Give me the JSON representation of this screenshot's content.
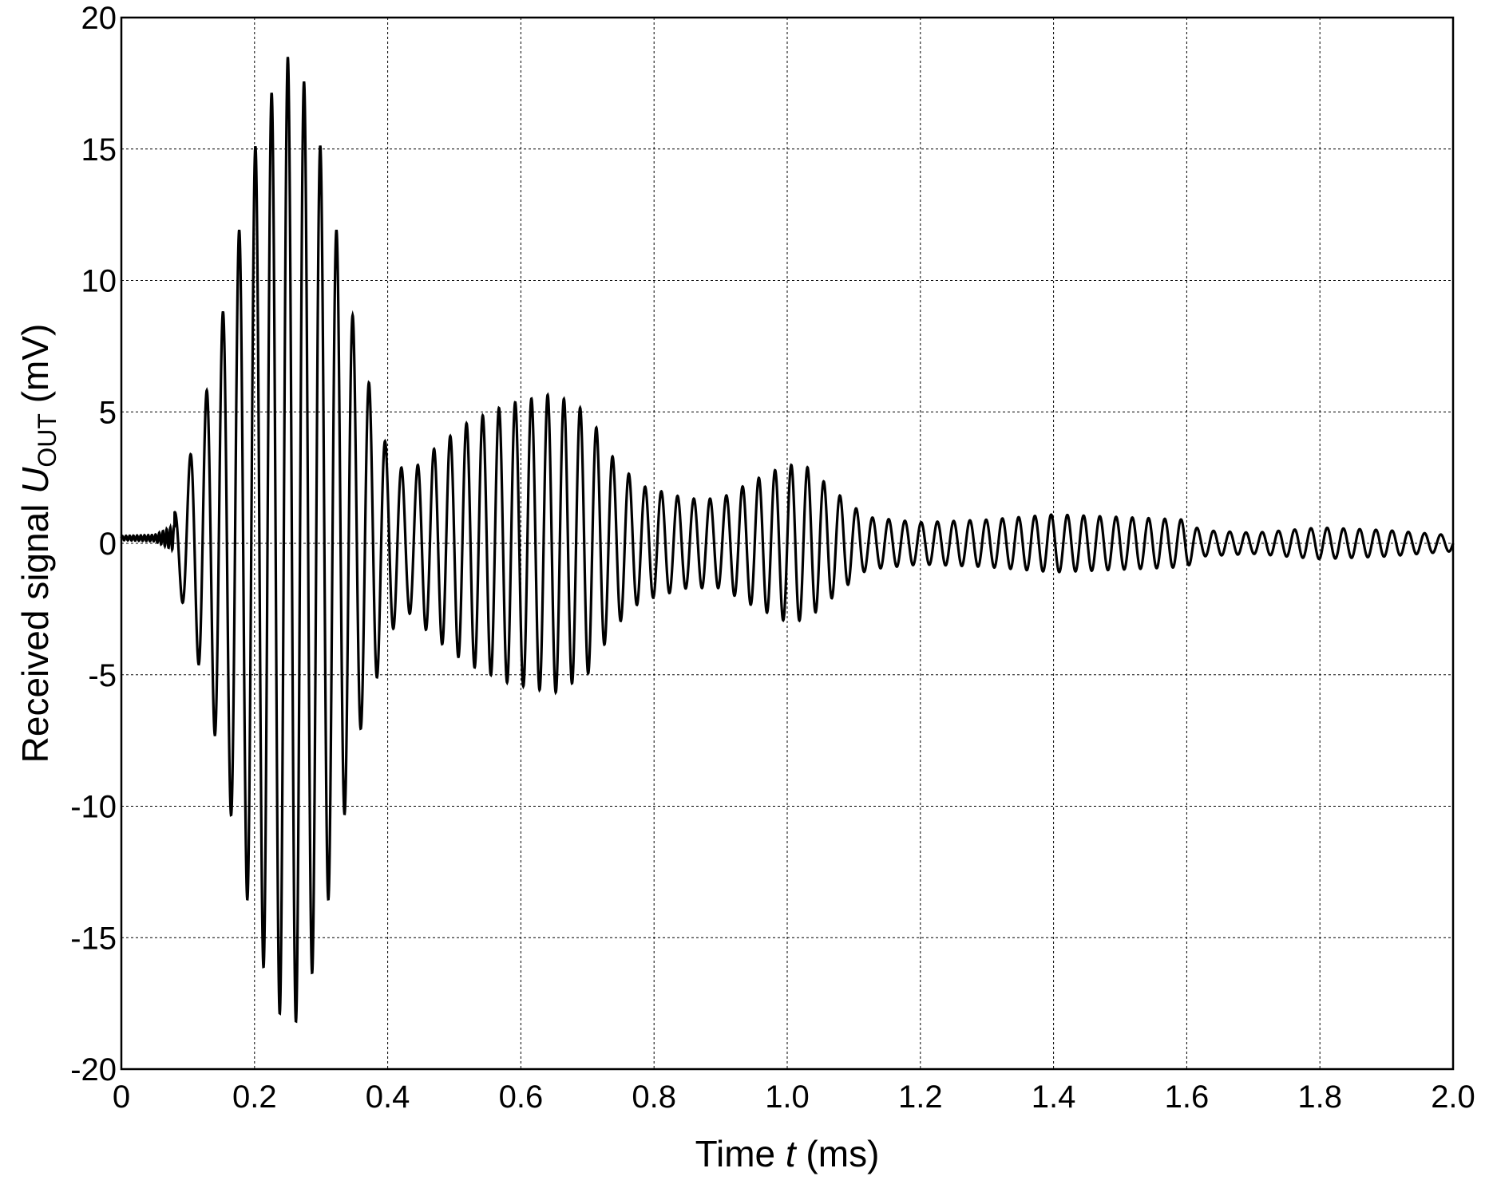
{
  "chart_data": {
    "type": "line",
    "title": "",
    "xlabel": {
      "prefix": "Time ",
      "symbol": "t",
      "suffix": " (ms)"
    },
    "ylabel": {
      "prefix": "Received signal ",
      "symbol": "U",
      "subscript": "OUT",
      "suffix": " (mV)"
    },
    "xlim": [
      0,
      2.0
    ],
    "ylim": [
      -20,
      20
    ],
    "x_ticks": [
      0,
      0.2,
      0.4,
      0.6,
      0.8,
      1.0,
      1.2,
      1.4,
      1.6,
      1.8,
      2.0
    ],
    "x_tick_labels": [
      "0",
      "0.2",
      "0.4",
      "0.6",
      "0.8",
      "1.0",
      "1.2",
      "1.4",
      "1.6",
      "1.8",
      "2.0"
    ],
    "y_ticks": [
      -20,
      -15,
      -10,
      -5,
      0,
      5,
      10,
      15,
      20
    ],
    "y_tick_labels": [
      "-20",
      "-15",
      "-10",
      "-5",
      "0",
      "5",
      "10",
      "15",
      "20"
    ],
    "grid": true,
    "legend": "none",
    "line_color": "#000000",
    "series": [
      {
        "oscillation_frequency_khz": 41,
        "envelope_points": [
          [
            0.0,
            0.2
          ],
          [
            0.05,
            0.3
          ],
          [
            0.08,
            1.2
          ],
          [
            0.1,
            3.0
          ],
          [
            0.13,
            6.0
          ],
          [
            0.17,
            11.0
          ],
          [
            0.2,
            15.0
          ],
          [
            0.23,
            17.5
          ],
          [
            0.25,
            18.5
          ],
          [
            0.27,
            18.0
          ],
          [
            0.3,
            15.0
          ],
          [
            0.33,
            11.0
          ],
          [
            0.36,
            7.0
          ],
          [
            0.38,
            5.5
          ],
          [
            0.4,
            3.5
          ],
          [
            0.43,
            2.6
          ],
          [
            0.47,
            3.6
          ],
          [
            0.52,
            4.6
          ],
          [
            0.58,
            5.3
          ],
          [
            0.65,
            5.7
          ],
          [
            0.7,
            5.0
          ],
          [
            0.74,
            3.2
          ],
          [
            0.78,
            2.2
          ],
          [
            0.85,
            1.7
          ],
          [
            0.9,
            1.7
          ],
          [
            0.95,
            2.4
          ],
          [
            1.0,
            3.0
          ],
          [
            1.03,
            2.9
          ],
          [
            1.08,
            1.8
          ],
          [
            1.12,
            1.0
          ],
          [
            1.2,
            0.8
          ],
          [
            1.3,
            0.9
          ],
          [
            1.4,
            1.1
          ],
          [
            1.5,
            1.0
          ],
          [
            1.6,
            0.9
          ],
          [
            1.62,
            0.5
          ],
          [
            1.7,
            0.4
          ],
          [
            1.8,
            0.6
          ],
          [
            1.9,
            0.5
          ],
          [
            2.0,
            0.3
          ]
        ]
      }
    ]
  }
}
